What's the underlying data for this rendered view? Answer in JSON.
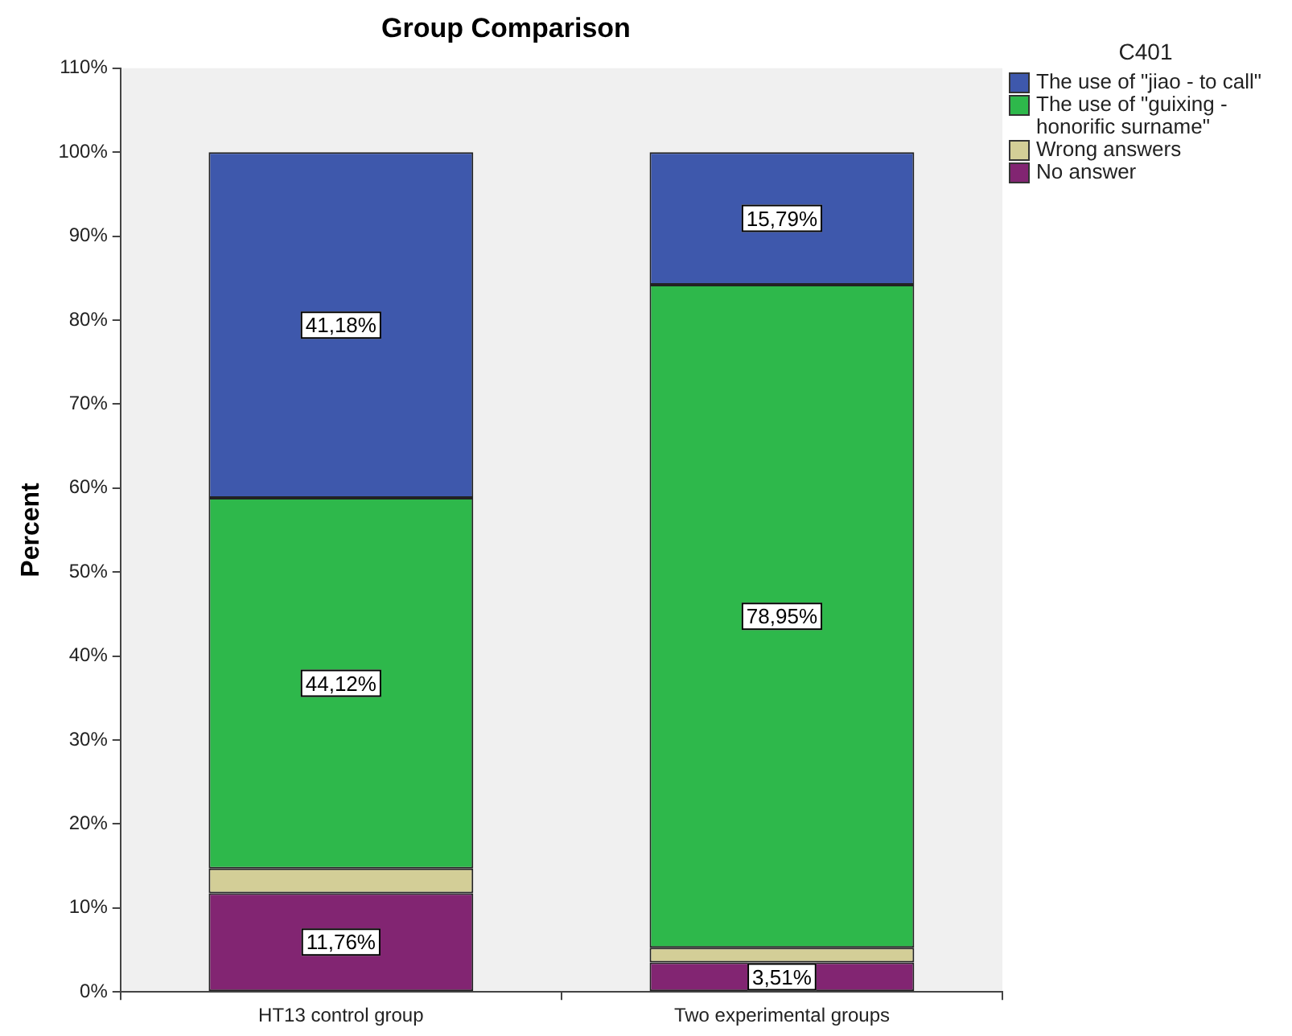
{
  "chart_data": {
    "type": "bar",
    "title": "Group Comparison",
    "ylabel": "Percent",
    "legend_title": "C401",
    "categories": [
      "HT13 control group",
      "Two experimental groups"
    ],
    "stacked": true,
    "legend": "right",
    "grid": false,
    "ylim": [
      0,
      110
    ],
    "yticks": [
      {
        "value": 0,
        "label": "0%"
      },
      {
        "value": 10,
        "label": "10%"
      },
      {
        "value": 20,
        "label": "20%"
      },
      {
        "value": 30,
        "label": "30%"
      },
      {
        "value": 40,
        "label": "40%"
      },
      {
        "value": 50,
        "label": "50%"
      },
      {
        "value": 60,
        "label": "60%"
      },
      {
        "value": 70,
        "label": "70%"
      },
      {
        "value": 80,
        "label": "80%"
      },
      {
        "value": 90,
        "label": "90%"
      },
      {
        "value": 100,
        "label": "100%"
      },
      {
        "value": 110,
        "label": "110%"
      }
    ],
    "series": [
      {
        "name": "No answer",
        "color": "#822572",
        "values": [
          11.76,
          3.51
        ],
        "value_labels": [
          "11,76%",
          "3,51%"
        ]
      },
      {
        "name": "Wrong answers",
        "color": "#d3ce97",
        "values": [
          2.94,
          1.75
        ],
        "value_labels": [
          null,
          null
        ]
      },
      {
        "name": "The use of \"guixing - honorific surname\"",
        "color": "#2eb84b",
        "values": [
          44.12,
          78.95
        ],
        "value_labels": [
          "44,12%",
          "78,95%"
        ]
      },
      {
        "name": "The use of \"jiao - to call\"",
        "color": "#3e58ac",
        "values": [
          41.18,
          15.79
        ],
        "value_labels": [
          "41,18%",
          "15,79%"
        ]
      }
    ]
  }
}
